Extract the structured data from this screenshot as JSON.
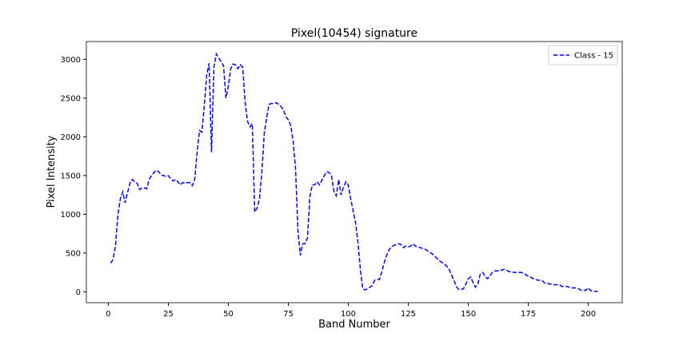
{
  "chart_data": {
    "type": "line",
    "title": "Pixel(10454) signature",
    "x_label": "Band Number",
    "y_label": "Pixel Intensity",
    "x": [
      1,
      2,
      3,
      4,
      5,
      6,
      7,
      8,
      9,
      10,
      11,
      12,
      13,
      14,
      15,
      16,
      17,
      18,
      19,
      20,
      21,
      22,
      23,
      24,
      25,
      26,
      27,
      28,
      29,
      30,
      31,
      32,
      33,
      34,
      35,
      36,
      37,
      38,
      39,
      40,
      41,
      42,
      43,
      44,
      45,
      46,
      47,
      48,
      49,
      50,
      51,
      52,
      53,
      54,
      55,
      56,
      57,
      58,
      59,
      60,
      61,
      62,
      63,
      64,
      65,
      66,
      67,
      68,
      69,
      70,
      71,
      72,
      73,
      74,
      75,
      76,
      77,
      78,
      79,
      80,
      81,
      82,
      83,
      84,
      85,
      86,
      87,
      88,
      89,
      90,
      91,
      92,
      93,
      94,
      95,
      96,
      97,
      98,
      99,
      100,
      101,
      102,
      103,
      104,
      105,
      106,
      107,
      108,
      109,
      110,
      111,
      112,
      113,
      114,
      115,
      116,
      117,
      118,
      119,
      120,
      121,
      122,
      123,
      124,
      125,
      126,
      127,
      128,
      129,
      130,
      131,
      132,
      133,
      134,
      135,
      136,
      137,
      138,
      139,
      140,
      141,
      142,
      143,
      144,
      145,
      146,
      147,
      148,
      149,
      150,
      151,
      152,
      153,
      154,
      155,
      156,
      157,
      158,
      159,
      160,
      161,
      162,
      163,
      164,
      165,
      166,
      167,
      168,
      169,
      170,
      171,
      172,
      173,
      174,
      175,
      176,
      177,
      178,
      179,
      180,
      181,
      182,
      183,
      184,
      185,
      186,
      187,
      188,
      189,
      190,
      191,
      192,
      193,
      194,
      195,
      196,
      197,
      198,
      199,
      200,
      201,
      202,
      203,
      204
    ],
    "series": [
      {
        "name": "Class - 15",
        "color": "#0000ff",
        "dash": true,
        "values": [
          370,
          420,
          600,
          1000,
          1200,
          1290,
          1150,
          1280,
          1400,
          1450,
          1420,
          1400,
          1320,
          1340,
          1340,
          1330,
          1450,
          1500,
          1540,
          1570,
          1550,
          1510,
          1500,
          1490,
          1500,
          1460,
          1430,
          1450,
          1420,
          1380,
          1410,
          1400,
          1410,
          1410,
          1370,
          1450,
          1800,
          2080,
          2060,
          2400,
          2800,
          2950,
          1800,
          2900,
          3070,
          3020,
          2970,
          2920,
          2500,
          2650,
          2880,
          2940,
          2930,
          2880,
          2930,
          2900,
          2450,
          2200,
          2130,
          2170,
          1030,
          1080,
          1200,
          1550,
          2050,
          2250,
          2420,
          2430,
          2430,
          2440,
          2420,
          2390,
          2350,
          2260,
          2220,
          2150,
          1950,
          1600,
          800,
          470,
          620,
          620,
          700,
          1230,
          1380,
          1380,
          1420,
          1380,
          1440,
          1500,
          1550,
          1540,
          1500,
          1300,
          1240,
          1450,
          1250,
          1350,
          1420,
          1380,
          1200,
          1050,
          900,
          650,
          300,
          40,
          25,
          40,
          60,
          80,
          150,
          160,
          160,
          260,
          380,
          470,
          540,
          580,
          600,
          610,
          620,
          610,
          570,
          590,
          580,
          590,
          620,
          590,
          580,
          570,
          560,
          550,
          530,
          510,
          490,
          460,
          430,
          400,
          380,
          360,
          330,
          290,
          220,
          150,
          70,
          30,
          30,
          40,
          100,
          170,
          190,
          120,
          60,
          100,
          230,
          250,
          200,
          170,
          200,
          250,
          270,
          270,
          280,
          280,
          290,
          280,
          260,
          260,
          250,
          250,
          250,
          250,
          240,
          220,
          200,
          190,
          170,
          160,
          150,
          150,
          140,
          110,
          110,
          100,
          100,
          90,
          90,
          90,
          70,
          70,
          70,
          60,
          50,
          50,
          50,
          40,
          20,
          20,
          20,
          50,
          15,
          10,
          5,
          5
        ]
      }
    ],
    "xlim": [
      -9.15,
      214.15
    ],
    "ylim": [
      -140,
      3230
    ],
    "xticks": [
      0,
      25,
      50,
      75,
      100,
      125,
      150,
      175,
      200
    ],
    "yticks": [
      0,
      500,
      1000,
      1500,
      2000,
      2500,
      3000
    ],
    "legend": "upper right",
    "grid": false
  }
}
